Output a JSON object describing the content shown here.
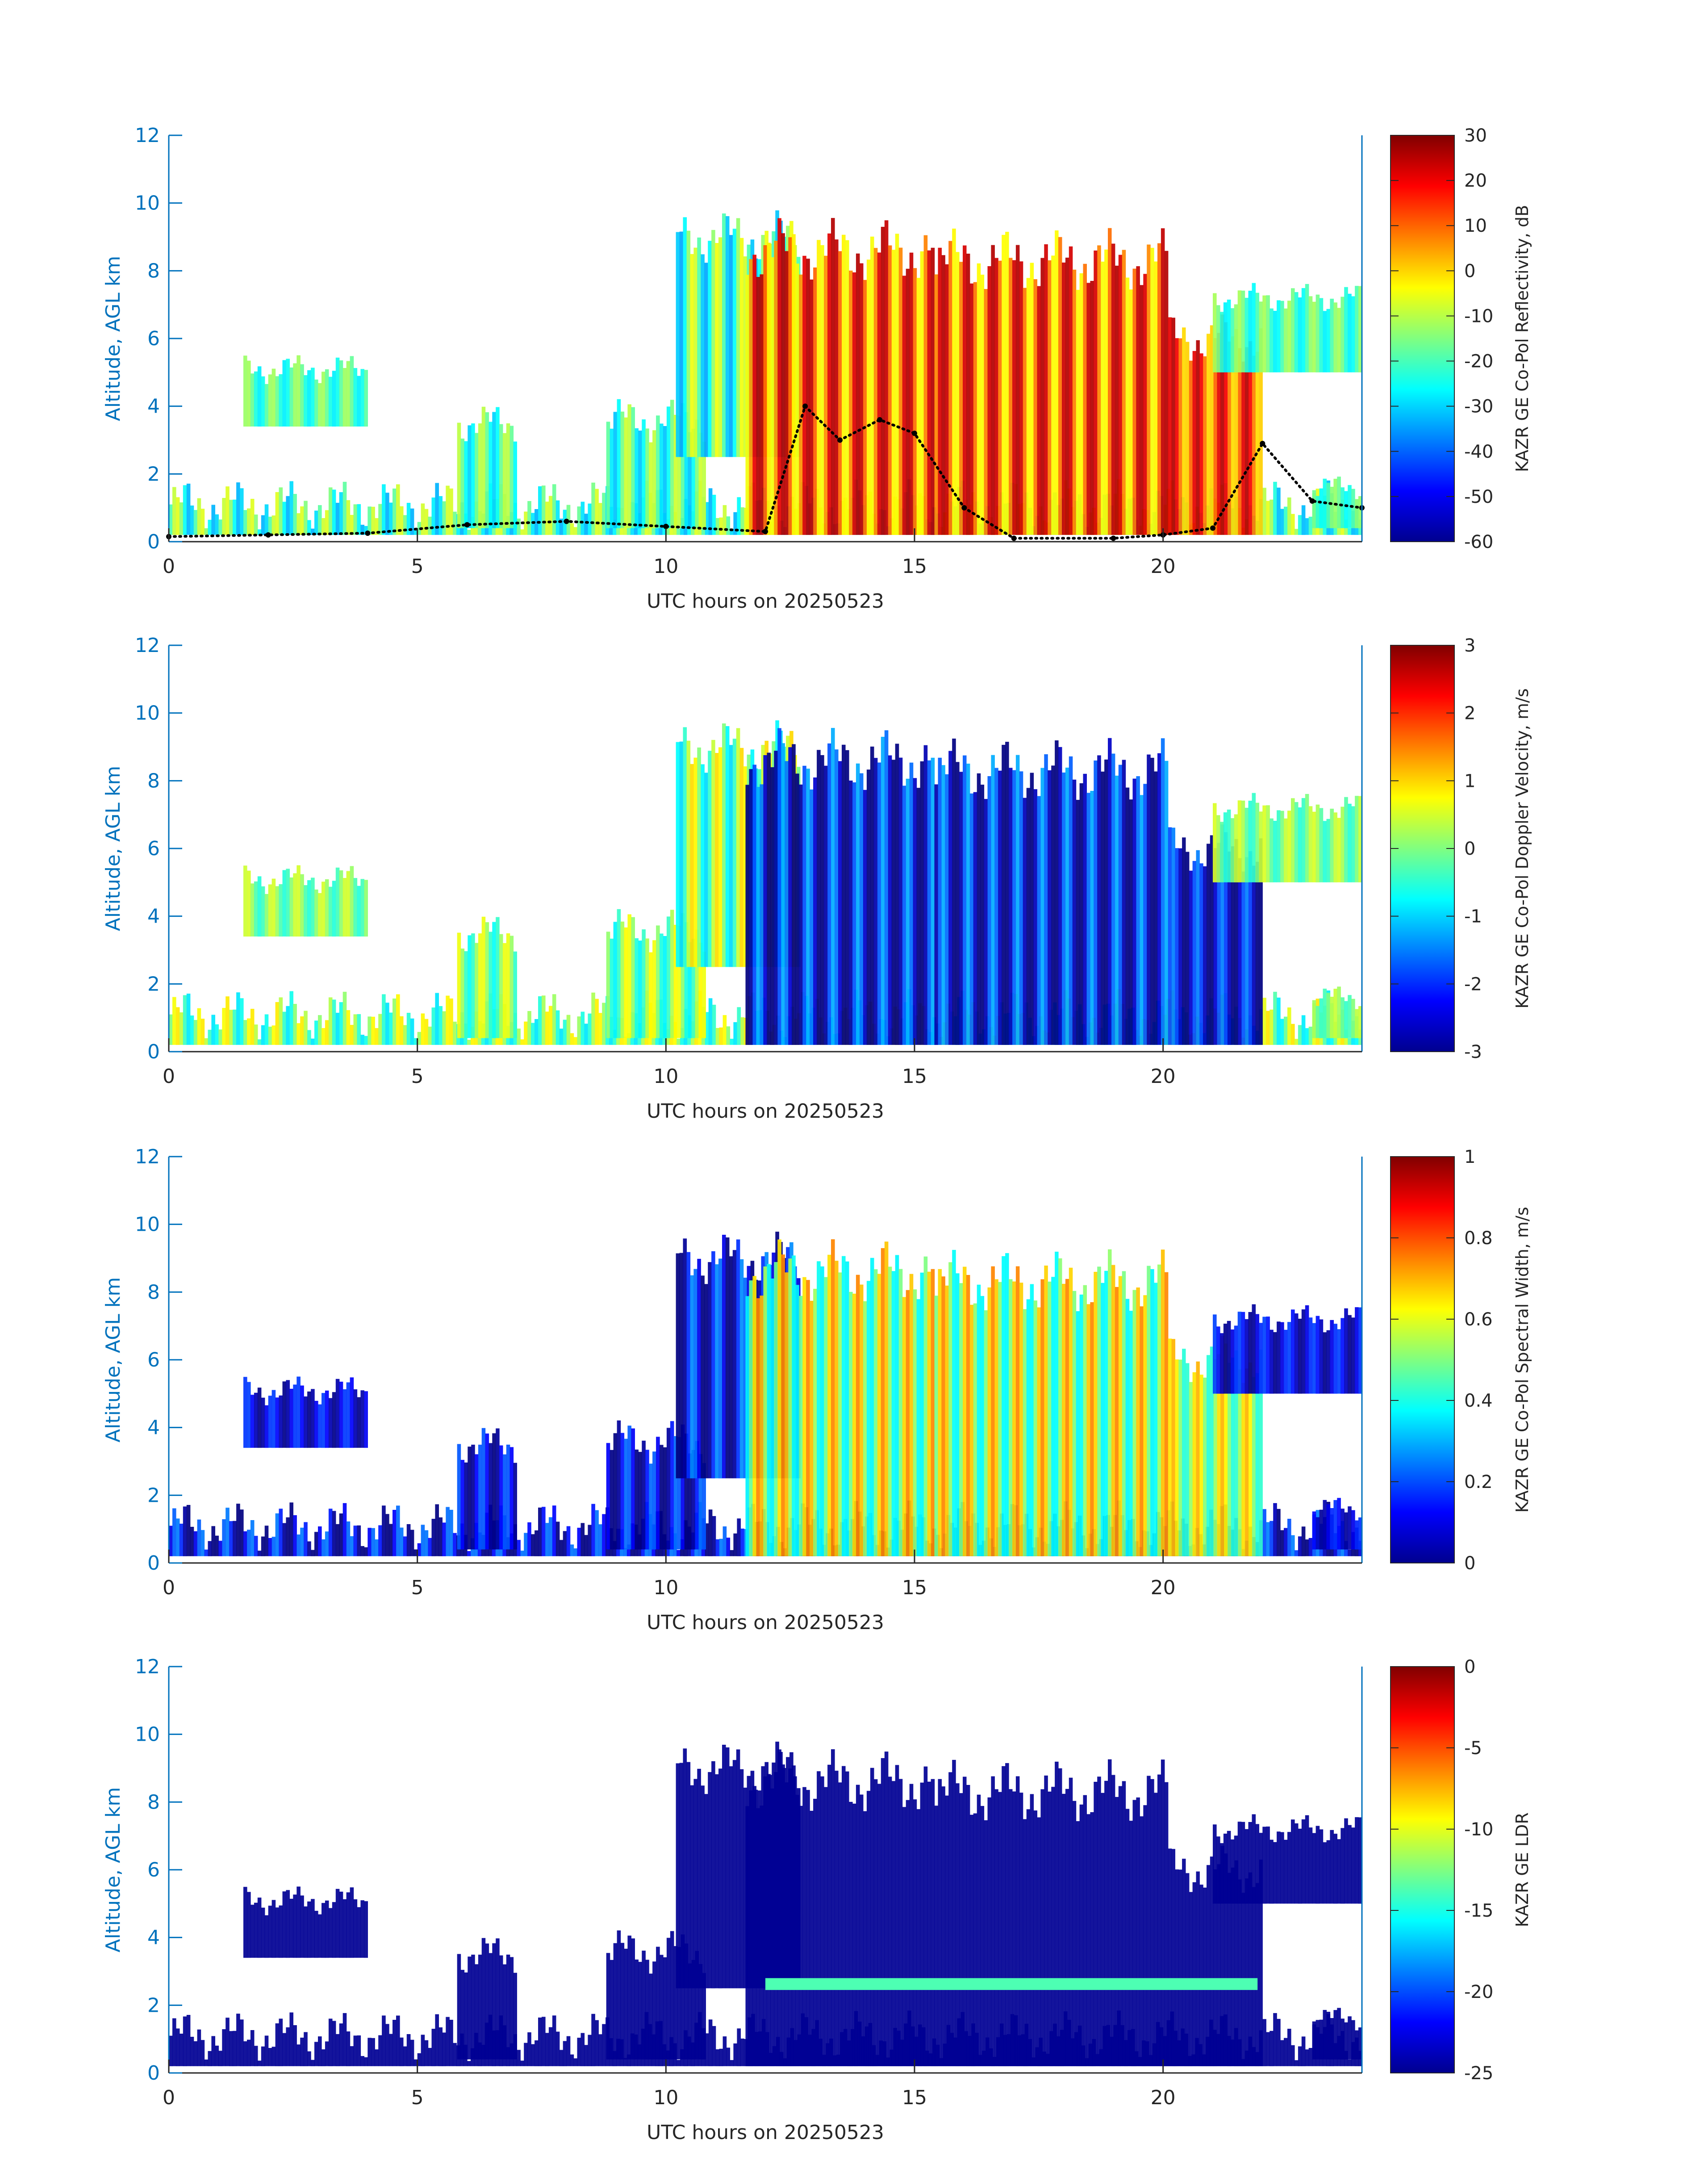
{
  "figure": {
    "background": "#ffffff",
    "axis_color": "#0072bd",
    "tick_color": "#262626",
    "colormap": "jet"
  },
  "chart_data": [
    {
      "type": "heatmap",
      "title": "",
      "xlabel": "UTC hours on 20250523",
      "ylabel": "Altitude, AGL km",
      "xlim": [
        0,
        24
      ],
      "ylim": [
        0,
        12
      ],
      "xticks": [
        "0",
        "5",
        "10",
        "15",
        "20"
      ],
      "yticks": [
        "0",
        "2",
        "4",
        "6",
        "8",
        "10",
        "12"
      ],
      "colorbar": {
        "label": "KAZR GE Co-Pol Reflectivity, dB",
        "range": [
          -60,
          30
        ],
        "ticks": [
          "30",
          "20",
          "10",
          "0",
          "-10",
          "-20",
          "-30",
          "-40",
          "-50",
          "-60"
        ]
      },
      "overlay": {
        "type": "scatter",
        "marker": "black dots",
        "points": [
          [
            0,
            0.15
          ],
          [
            2,
            0.2
          ],
          [
            4,
            0.25
          ],
          [
            6,
            0.5
          ],
          [
            8,
            0.6
          ],
          [
            10,
            0.45
          ],
          [
            12,
            0.3
          ],
          [
            12.8,
            4.0
          ],
          [
            13.5,
            3.0
          ],
          [
            14.3,
            3.6
          ],
          [
            15,
            3.2
          ],
          [
            16,
            1.0
          ],
          [
            17,
            0.1
          ],
          [
            19,
            0.1
          ],
          [
            20,
            0.2
          ],
          [
            21,
            0.4
          ],
          [
            22,
            2.9
          ],
          [
            23,
            1.2
          ],
          [
            24,
            1.0
          ]
        ]
      }
    },
    {
      "type": "heatmap",
      "title": "",
      "xlabel": "UTC hours on 20250523",
      "ylabel": "Altitude, AGL km",
      "xlim": [
        0,
        24
      ],
      "ylim": [
        0,
        12
      ],
      "xticks": [
        "0",
        "5",
        "10",
        "15",
        "20"
      ],
      "yticks": [
        "0",
        "2",
        "4",
        "6",
        "8",
        "10",
        "12"
      ],
      "colorbar": {
        "label": "KAZR GE Co-Pol Doppler Velocity, m/s",
        "range": [
          -3,
          3
        ],
        "ticks": [
          "3",
          "2",
          "1",
          "0",
          "-1",
          "-2",
          "-3"
        ]
      }
    },
    {
      "type": "heatmap",
      "title": "",
      "xlabel": "UTC hours on 20250523",
      "ylabel": "Altitude, AGL km",
      "xlim": [
        0,
        24
      ],
      "ylim": [
        0,
        12
      ],
      "xticks": [
        "0",
        "5",
        "10",
        "15",
        "20"
      ],
      "yticks": [
        "0",
        "2",
        "4",
        "6",
        "8",
        "10",
        "12"
      ],
      "colorbar": {
        "label": "KAZR GE Co-Pol Spectral Width, m/s",
        "range": [
          0,
          1
        ],
        "ticks": [
          "1",
          "0.8",
          "0.6",
          "0.4",
          "0.2",
          "0"
        ]
      }
    },
    {
      "type": "heatmap",
      "title": "",
      "xlabel": "UTC hours on 20250523",
      "ylabel": "Altitude, AGL km",
      "xlim": [
        0,
        24
      ],
      "ylim": [
        0,
        12
      ],
      "xticks": [
        "0",
        "5",
        "10",
        "15",
        "20"
      ],
      "yticks": [
        "0",
        "2",
        "4",
        "6",
        "8",
        "10",
        "12"
      ],
      "colorbar": {
        "label": "KAZR GE LDR",
        "range": [
          -25,
          0
        ],
        "ticks": [
          "0",
          "-5",
          "-10",
          "-15",
          "-20",
          "-25"
        ]
      }
    }
  ]
}
